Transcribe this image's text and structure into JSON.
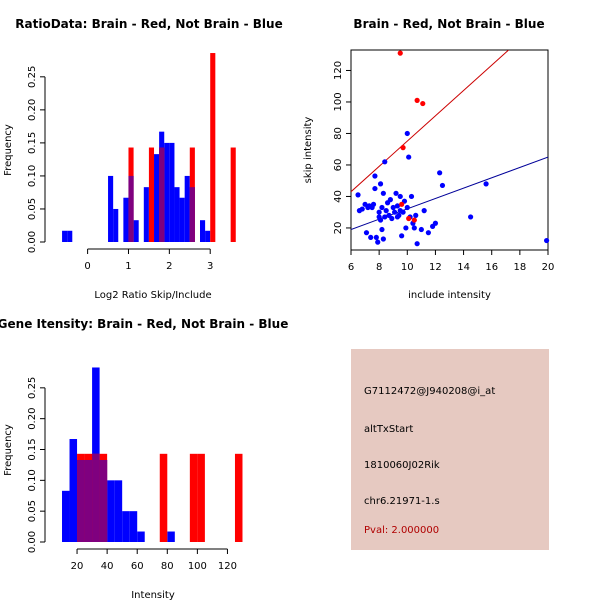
{
  "colors": {
    "red": "#ff0000",
    "blue": "#0000ff",
    "overlap": "#7f007f",
    "red_line": "#cc0000",
    "blue_line": "#000099",
    "info_bg": "#e6c9c1",
    "pval": "#b00000"
  },
  "chart_data": [
    {
      "type": "histogram",
      "title": "RatioData: Brain - Red, Not Brain - Blue",
      "xlabel": "Log2 Ratio Skip/Include",
      "ylabel": "Frequency",
      "xlim": [
        -0.7,
        3.9
      ],
      "ylim": [
        0,
        0.28
      ],
      "xticks": [
        0,
        1,
        2,
        3
      ],
      "yticks": [
        0.0,
        0.05,
        0.1,
        0.15,
        0.2,
        0.25
      ],
      "ytick_labels": [
        "0.00",
        "0.05",
        "0.10",
        "0.15",
        "0.20",
        "0.25"
      ],
      "bin_width": 0.125,
      "series": [
        {
          "name": "Not Brain",
          "color": "blue",
          "bins": [
            {
              "x0": -0.625,
              "value": 0.017
            },
            {
              "x0": -0.5,
              "value": 0.017
            },
            {
              "x0": 0.5,
              "value": 0.1
            },
            {
              "x0": 0.625,
              "value": 0.05
            },
            {
              "x0": 0.875,
              "value": 0.067
            },
            {
              "x0": 1.0,
              "value": 0.1
            },
            {
              "x0": 1.125,
              "value": 0.033
            },
            {
              "x0": 1.375,
              "value": 0.083
            },
            {
              "x0": 1.625,
              "value": 0.133
            },
            {
              "x0": 1.75,
              "value": 0.167
            },
            {
              "x0": 1.875,
              "value": 0.15
            },
            {
              "x0": 2.0,
              "value": 0.15
            },
            {
              "x0": 2.125,
              "value": 0.083
            },
            {
              "x0": 2.25,
              "value": 0.067
            },
            {
              "x0": 2.375,
              "value": 0.1
            },
            {
              "x0": 2.5,
              "value": 0.083
            },
            {
              "x0": 2.75,
              "value": 0.033
            },
            {
              "x0": 2.875,
              "value": 0.017
            }
          ]
        },
        {
          "name": "Brain",
          "color": "red",
          "bins": [
            {
              "x0": 1.0,
              "value": 0.143
            },
            {
              "x0": 1.5,
              "value": 0.143
            },
            {
              "x0": 1.75,
              "value": 0.143
            },
            {
              "x0": 2.5,
              "value": 0.143
            },
            {
              "x0": 3.0,
              "value": 0.286
            },
            {
              "x0": 3.5,
              "value": 0.143
            }
          ]
        }
      ]
    },
    {
      "type": "scatter",
      "title": "Brain - Red, Not Brain - Blue",
      "xlabel": "include intensity",
      "ylabel": "skip intensity",
      "xlim": [
        6,
        20
      ],
      "ylim": [
        6,
        133
      ],
      "xticks": [
        6,
        8,
        10,
        12,
        14,
        16,
        18,
        20
      ],
      "yticks": [
        20,
        40,
        60,
        80,
        100,
        120
      ],
      "series": [
        {
          "name": "Not Brain",
          "color": "blue",
          "points": [
            [
              6.5,
              41
            ],
            [
              6.6,
              31
            ],
            [
              6.8,
              32
            ],
            [
              7,
              35
            ],
            [
              7.1,
              17
            ],
            [
              7.2,
              33
            ],
            [
              7.3,
              34
            ],
            [
              7.4,
              14
            ],
            [
              7.5,
              33
            ],
            [
              7.6,
              35
            ],
            [
              7.7,
              53
            ],
            [
              7.7,
              45
            ],
            [
              7.8,
              14
            ],
            [
              7.9,
              11
            ],
            [
              8,
              30
            ],
            [
              8,
              27
            ],
            [
              8.1,
              48
            ],
            [
              8.1,
              25
            ],
            [
              8.2,
              19
            ],
            [
              8.2,
              33
            ],
            [
              8.3,
              42
            ],
            [
              8.3,
              13
            ],
            [
              8.4,
              62
            ],
            [
              8.4,
              27
            ],
            [
              8.5,
              31
            ],
            [
              8.6,
              36
            ],
            [
              8.7,
              28
            ],
            [
              8.8,
              38
            ],
            [
              8.9,
              26
            ],
            [
              9,
              33
            ],
            [
              9.1,
              30
            ],
            [
              9.2,
              42
            ],
            [
              9.3,
              27
            ],
            [
              9.3,
              34
            ],
            [
              9.4,
              28
            ],
            [
              9.5,
              40
            ],
            [
              9.5,
              31
            ],
            [
              9.6,
              15
            ],
            [
              9.7,
              30
            ],
            [
              9.8,
              37
            ],
            [
              9.9,
              20
            ],
            [
              10,
              80
            ],
            [
              10,
              33
            ],
            [
              10.1,
              65
            ],
            [
              10.2,
              27
            ],
            [
              10.3,
              40
            ],
            [
              10.4,
              23
            ],
            [
              10.5,
              20
            ],
            [
              10.6,
              28
            ],
            [
              10.7,
              10
            ],
            [
              11,
              19
            ],
            [
              11.2,
              31
            ],
            [
              11.5,
              17
            ],
            [
              11.8,
              21
            ],
            [
              12,
              23
            ],
            [
              12.3,
              55
            ],
            [
              12.5,
              47
            ],
            [
              14.5,
              27
            ],
            [
              15.6,
              48
            ],
            [
              19.9,
              12
            ]
          ]
        },
        {
          "name": "Brain",
          "color": "red",
          "points": [
            [
              9.5,
              131
            ],
            [
              10.7,
              101
            ],
            [
              11.1,
              99
            ],
            [
              9.7,
              71
            ],
            [
              9.6,
              35
            ],
            [
              10.1,
              26
            ],
            [
              10.5,
              25
            ]
          ]
        }
      ],
      "lines": [
        {
          "name": "Brain fit",
          "color": "red_line",
          "from": [
            6,
            43
          ],
          "to": [
            17.2,
            133
          ]
        },
        {
          "name": "Not Brain fit",
          "color": "blue_line",
          "from": [
            6,
            19
          ],
          "to": [
            20,
            65
          ]
        }
      ]
    },
    {
      "type": "histogram",
      "title": "Gene Itensity: Brain - Red, Not Brain - Blue",
      "xlabel": "Intensity",
      "ylabel": "Frequency",
      "xlim": [
        8,
        133
      ],
      "ylim": [
        0,
        0.3
      ],
      "xticks": [
        20,
        40,
        60,
        80,
        100,
        120
      ],
      "yticks": [
        0.0,
        0.05,
        0.1,
        0.15,
        0.2,
        0.25
      ],
      "ytick_labels": [
        "0.00",
        "0.05",
        "0.10",
        "0.15",
        "0.20",
        "0.25"
      ],
      "bin_width": 5,
      "series": [
        {
          "name": "Not Brain",
          "color": "blue",
          "bins": [
            {
              "x0": 10,
              "value": 0.083
            },
            {
              "x0": 15,
              "value": 0.167
            },
            {
              "x0": 20,
              "value": 0.133
            },
            {
              "x0": 25,
              "value": 0.133
            },
            {
              "x0": 30,
              "value": 0.283
            },
            {
              "x0": 35,
              "value": 0.133
            },
            {
              "x0": 40,
              "value": 0.1
            },
            {
              "x0": 45,
              "value": 0.1
            },
            {
              "x0": 50,
              "value": 0.05
            },
            {
              "x0": 55,
              "value": 0.05
            },
            {
              "x0": 60,
              "value": 0.017
            },
            {
              "x0": 80,
              "value": 0.017
            }
          ]
        },
        {
          "name": "Brain",
          "color": "red",
          "bins": [
            {
              "x0": 20,
              "value": 0.143
            },
            {
              "x0": 25,
              "value": 0.143
            },
            {
              "x0": 30,
              "value": 0.143
            },
            {
              "x0": 35,
              "value": 0.143
            },
            {
              "x0": 75,
              "value": 0.143
            },
            {
              "x0": 95,
              "value": 0.143
            },
            {
              "x0": 100,
              "value": 0.143
            },
            {
              "x0": 125,
              "value": 0.143
            }
          ]
        }
      ]
    }
  ],
  "info": {
    "probe_id": "G7112472@J940208@i_at",
    "event_type": "altTxStart",
    "gene": "1810060J02Rik",
    "location": "chr6.21971-1.s",
    "pval": "Pval: 2.000000"
  }
}
